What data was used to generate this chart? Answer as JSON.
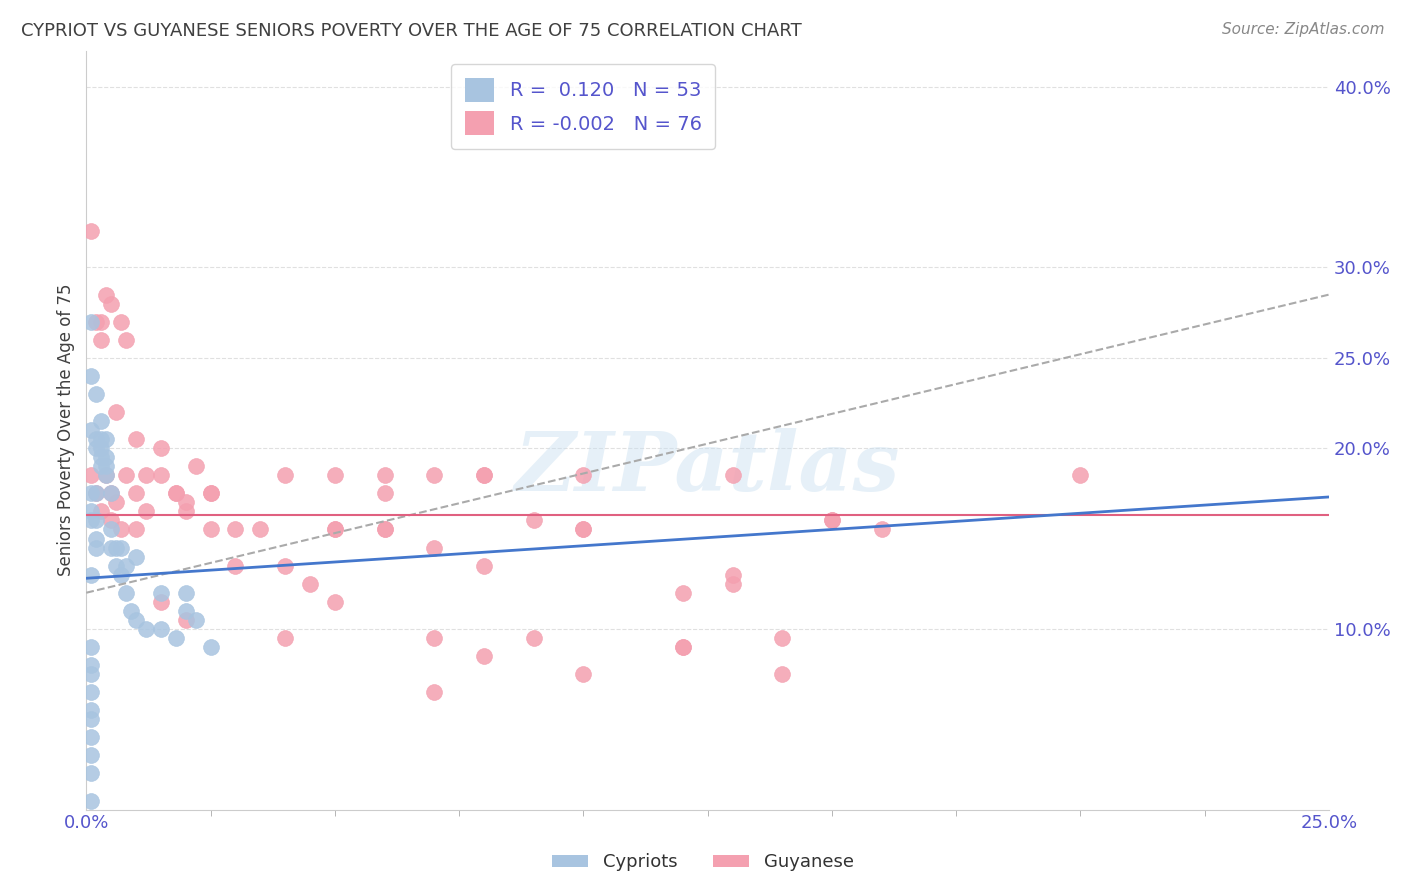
{
  "title": "CYPRIOT VS GUYANESE SENIORS POVERTY OVER THE AGE OF 75 CORRELATION CHART",
  "source": "Source: ZipAtlas.com",
  "ylabel": "Seniors Poverty Over the Age of 75",
  "watermark": "ZIPatlas",
  "cypriot_color": "#a8c4e0",
  "guyanese_color": "#f4a0b0",
  "cypriot_R": 0.12,
  "cypriot_N": 53,
  "guyanese_R": -0.002,
  "guyanese_N": 76,
  "xlim": [
    0.0,
    0.25
  ],
  "ylim": [
    0.0,
    0.42
  ],
  "yticks": [
    0.1,
    0.2,
    0.25,
    0.3,
    0.4
  ],
  "ytick_labels": [
    "10.0%",
    "20.0%",
    "25.0%",
    "30.0%",
    "40.0%"
  ],
  "cypriot_x": [
    0.001,
    0.001,
    0.001,
    0.001,
    0.001,
    0.001,
    0.001,
    0.001,
    0.002,
    0.002,
    0.002,
    0.002,
    0.002,
    0.002,
    0.002,
    0.003,
    0.003,
    0.003,
    0.003,
    0.003,
    0.004,
    0.004,
    0.004,
    0.004,
    0.005,
    0.005,
    0.005,
    0.006,
    0.006,
    0.007,
    0.007,
    0.008,
    0.008,
    0.009,
    0.01,
    0.01,
    0.012,
    0.015,
    0.015,
    0.018,
    0.02,
    0.02,
    0.022,
    0.025,
    0.001,
    0.001,
    0.001,
    0.001,
    0.001,
    0.001,
    0.001,
    0.001,
    0.001
  ],
  "cypriot_y": [
    0.27,
    0.24,
    0.21,
    0.175,
    0.165,
    0.16,
    0.13,
    0.09,
    0.23,
    0.205,
    0.2,
    0.175,
    0.16,
    0.15,
    0.145,
    0.215,
    0.205,
    0.2,
    0.195,
    0.19,
    0.205,
    0.195,
    0.19,
    0.185,
    0.175,
    0.155,
    0.145,
    0.145,
    0.135,
    0.145,
    0.13,
    0.135,
    0.12,
    0.11,
    0.14,
    0.105,
    0.1,
    0.12,
    0.1,
    0.095,
    0.12,
    0.11,
    0.105,
    0.09,
    0.08,
    0.075,
    0.065,
    0.055,
    0.05,
    0.04,
    0.03,
    0.02,
    0.005
  ],
  "guyanese_x": [
    0.001,
    0.002,
    0.003,
    0.004,
    0.005,
    0.006,
    0.007,
    0.008,
    0.01,
    0.012,
    0.015,
    0.018,
    0.02,
    0.022,
    0.025,
    0.001,
    0.002,
    0.003,
    0.004,
    0.005,
    0.006,
    0.008,
    0.01,
    0.012,
    0.015,
    0.018,
    0.02,
    0.025,
    0.03,
    0.035,
    0.04,
    0.045,
    0.05,
    0.06,
    0.07,
    0.08,
    0.09,
    0.1,
    0.12,
    0.13,
    0.14,
    0.15,
    0.16,
    0.003,
    0.005,
    0.007,
    0.01,
    0.015,
    0.02,
    0.025,
    0.03,
    0.04,
    0.05,
    0.06,
    0.07,
    0.08,
    0.1,
    0.12,
    0.14,
    0.08,
    0.1,
    0.13,
    0.05,
    0.06,
    0.07,
    0.2,
    0.15,
    0.13,
    0.12,
    0.1,
    0.09,
    0.08,
    0.07,
    0.06,
    0.05,
    0.04
  ],
  "guyanese_y": [
    0.32,
    0.27,
    0.26,
    0.285,
    0.28,
    0.22,
    0.27,
    0.26,
    0.205,
    0.185,
    0.185,
    0.175,
    0.165,
    0.19,
    0.175,
    0.185,
    0.175,
    0.165,
    0.185,
    0.175,
    0.17,
    0.185,
    0.175,
    0.165,
    0.2,
    0.175,
    0.17,
    0.175,
    0.135,
    0.155,
    0.135,
    0.125,
    0.115,
    0.175,
    0.145,
    0.135,
    0.16,
    0.155,
    0.12,
    0.125,
    0.095,
    0.16,
    0.155,
    0.27,
    0.16,
    0.155,
    0.155,
    0.115,
    0.105,
    0.155,
    0.155,
    0.095,
    0.155,
    0.155,
    0.095,
    0.085,
    0.155,
    0.09,
    0.075,
    0.185,
    0.185,
    0.185,
    0.155,
    0.155,
    0.065,
    0.185,
    0.16,
    0.13,
    0.09,
    0.075,
    0.095,
    0.185,
    0.185,
    0.185,
    0.185,
    0.185
  ],
  "trend_blue_x0": 0.0,
  "trend_blue_y0": 0.128,
  "trend_blue_x1": 0.25,
  "trend_blue_y1": 0.173,
  "trend_dashed_x0": 0.0,
  "trend_dashed_y0": 0.12,
  "trend_dashed_x1": 0.25,
  "trend_dashed_y1": 0.285,
  "trend_pink_y": 0.163,
  "background_color": "#ffffff",
  "grid_color": "#e0e0e0",
  "title_color": "#404040",
  "axis_label_color": "#5555cc"
}
